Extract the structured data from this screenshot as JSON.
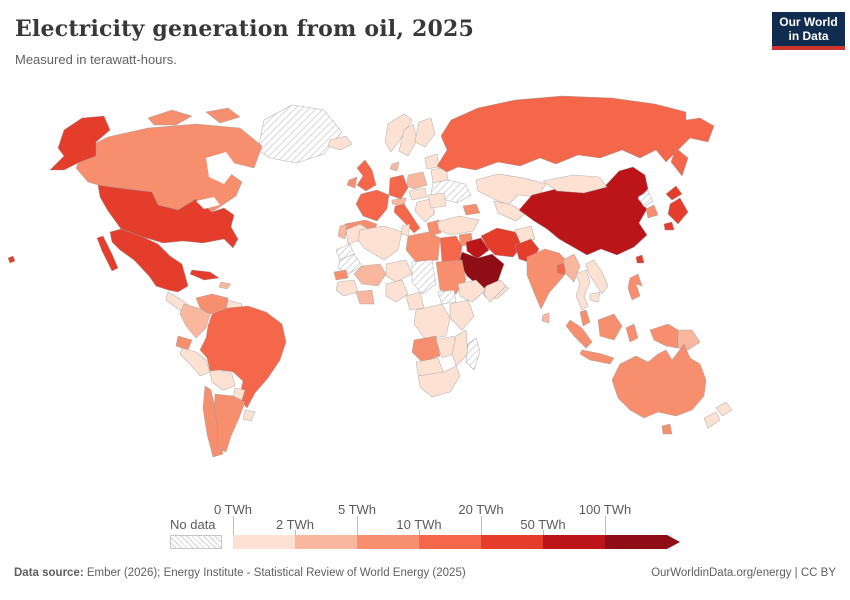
{
  "header": {
    "title": "Electricity generation from oil, 2025",
    "subtitle": "Measured in terawatt-hours.",
    "logo": {
      "line1": "Our World",
      "line2": "in Data",
      "bg": "#102c4e",
      "accent": "#ce352c"
    }
  },
  "legend": {
    "no_data_label": "No data",
    "tick_labels": [
      "0 TWh",
      "2 TWh",
      "5 TWh",
      "10 TWh",
      "20 TWh",
      "50 TWh",
      "100 TWh"
    ],
    "tick_rows": [
      "top",
      "bottom",
      "top",
      "bottom",
      "top",
      "bottom",
      "top"
    ],
    "colors": [
      "#fde2d4",
      "#f9b79f",
      "#f78f6f",
      "#f4674a",
      "#e43d2c",
      "#bb1419",
      "#8f0d14"
    ]
  },
  "map": {
    "ocean": "#ffffff",
    "countries": {
      "canada": "#f78f6f",
      "usa": "#e43d2c",
      "greenland": "no_data",
      "mexico": "#e43d2c",
      "central_america": "#fde2d4",
      "cuba": "#e43d2c",
      "hispaniola": "#f9b79f",
      "venezuela": "#f78f6f",
      "colombia": "#f9b79f",
      "guyanas": "#fde2d4",
      "ecuador": "#f78f6f",
      "peru": "#fde2d4",
      "brazil": "#f4674a",
      "bolivia": "#fde2d4",
      "paraguay": "#fde2d4",
      "chile": "#f78f6f",
      "argentina": "#f78f6f",
      "uruguay": "#fde2d4",
      "iceland": "#fde2d4",
      "norway": "#fde2d4",
      "sweden": "#fde2d4",
      "finland": "#fde2d4",
      "baltics": "#fde2d4",
      "uk": "#f4674a",
      "ireland": "#f78f6f",
      "denmark": "#f9b79f",
      "germany": "#f4674a",
      "poland": "#f9b79f",
      "belarus": "#fde2d4",
      "ukraine": "no_data",
      "france": "#f4674a",
      "spain": "#f78f6f",
      "portugal": "#f9b79f",
      "alpine": "#f9b79f",
      "italy": "#f4674a",
      "czech_hungary": "#fde2d4",
      "balkans": "#fde2d4",
      "romania": "#fde2d4",
      "greece": "#f78f6f",
      "russia": "#f4674a",
      "kazakhstan": "#fde2d4",
      "central_asia": "#fde2d4",
      "caucasus": "#f78f6f",
      "turkey": "#fde2d4",
      "syria": "#f78f6f",
      "iraq": "#bb1419",
      "saudi_arabia": "#8f0d14",
      "yemen_oman": "#fde2d4",
      "iran": "#e43d2c",
      "afghanistan": "#fde2d4",
      "pakistan": "#e43d2c",
      "india": "#f78f6f",
      "sri_lanka": "#f9b79f",
      "bangladesh": "#f4674a",
      "china": "#bb1419",
      "mongolia": "#fde2d4",
      "taiwan": "#e43d2c",
      "north_korea": "no_data",
      "south_korea": "#f78f6f",
      "japan": "#e43d2c",
      "myanmar": "#f9b79f",
      "thailand": "#fde2d4",
      "vietnam": "#fde2d4",
      "cambodia": "#fde2d4",
      "malaysia": "#f78f6f",
      "indonesia": "#f78f6f",
      "papua_new_guinea": "#f9b79f",
      "philippines": "#f78f6f",
      "australia": "#f78f6f",
      "new_zealand": "#fde2d4",
      "morocco": "#fde2d4",
      "western_sahara": "no_data",
      "mauritania": "no_data",
      "algeria": "#fde2d4",
      "tunisia": "#fde2d4",
      "libya": "#f78f6f",
      "egypt": "#f4674a",
      "mali": "#f9b79f",
      "senegal": "#f78f6f",
      "guinea_region": "#fde2d4",
      "ghana": "#f9b79f",
      "niger": "#fde2d4",
      "nigeria": "#fde2d4",
      "chad": "no_data",
      "sudan": "#f78f6f",
      "south_sudan": "no_data",
      "ethiopia": "#fde2d4",
      "somalia": "#fde2d4",
      "cameroon": "#fde2d4",
      "drc": "#fde2d4",
      "kenya_tanzania": "#fde2d4",
      "angola": "#f78f6f",
      "zambia_zimbabwe": "#fde2d4",
      "mozambique": "#fde2d4",
      "namibia_botswana": "#fde2d4",
      "south_africa": "#fde2d4",
      "madagascar": "no_data"
    }
  },
  "footer": {
    "source_label": "Data source:",
    "source_text": " Ember (2026); Energy Institute - Statistical Review of World Energy (2025)",
    "right_text": "OurWorldinData.org/energy | CC BY"
  },
  "chart_data": {
    "type": "choropleth",
    "title": "Electricity generation from oil, 2025",
    "unit": "TWh",
    "legend_bins": [
      {
        "range": "0-2",
        "color": "#fde2d4"
      },
      {
        "range": "2-5",
        "color": "#f9b79f"
      },
      {
        "range": "5-10",
        "color": "#f78f6f"
      },
      {
        "range": "10-20",
        "color": "#f4674a"
      },
      {
        "range": "20-50",
        "color": "#e43d2c"
      },
      {
        "range": "50-100",
        "color": "#bb1419"
      },
      {
        "range": "100+",
        "color": "#8f0d14"
      }
    ],
    "countries": {
      "United States": "20-50",
      "Canada": "5-10",
      "Mexico": "20-50",
      "Cuba": "20-50",
      "Brazil": "10-20",
      "Argentina": "5-10",
      "Chile": "5-10",
      "Colombia": "2-5",
      "Venezuela": "5-10",
      "Ecuador": "5-10",
      "Peru": "0-2",
      "Bolivia": "0-2",
      "United Kingdom": "10-20",
      "Ireland": "5-10",
      "France": "10-20",
      "Germany": "10-20",
      "Spain": "5-10",
      "Portugal": "2-5",
      "Italy": "10-20",
      "Greece": "5-10",
      "Norway": "0-2",
      "Sweden": "0-2",
      "Finland": "0-2",
      "Poland": "2-5",
      "Turkey": "0-2",
      "Russia": "10-20",
      "Kazakhstan": "0-2",
      "Syria": "5-10",
      "Iraq": "50-100",
      "Saudi Arabia": "100+",
      "Iran": "20-50",
      "Pakistan": "20-50",
      "India": "5-10",
      "Bangladesh": "10-20",
      "Sri Lanka": "2-5",
      "China": "50-100",
      "Mongolia": "0-2",
      "Japan": "20-50",
      "South Korea": "5-10",
      "Taiwan": "20-50",
      "Myanmar": "2-5",
      "Thailand": "0-2",
      "Vietnam": "0-2",
      "Malaysia": "5-10",
      "Indonesia": "5-10",
      "Philippines": "5-10",
      "Papua New Guinea": "2-5",
      "Australia": "5-10",
      "New Zealand": "0-2",
      "Morocco": "0-2",
      "Algeria": "0-2",
      "Libya": "5-10",
      "Egypt": "10-20",
      "Senegal": "5-10",
      "Mali": "2-5",
      "Sudan": "5-10",
      "Nigeria": "0-2",
      "Ethiopia": "0-2",
      "Angola": "5-10",
      "South Africa": "0-2",
      "no_data": [
        "Greenland",
        "Ukraine",
        "North Korea",
        "Western Sahara",
        "Mauritania",
        "Chad",
        "South Sudan",
        "Madagascar"
      ]
    }
  }
}
